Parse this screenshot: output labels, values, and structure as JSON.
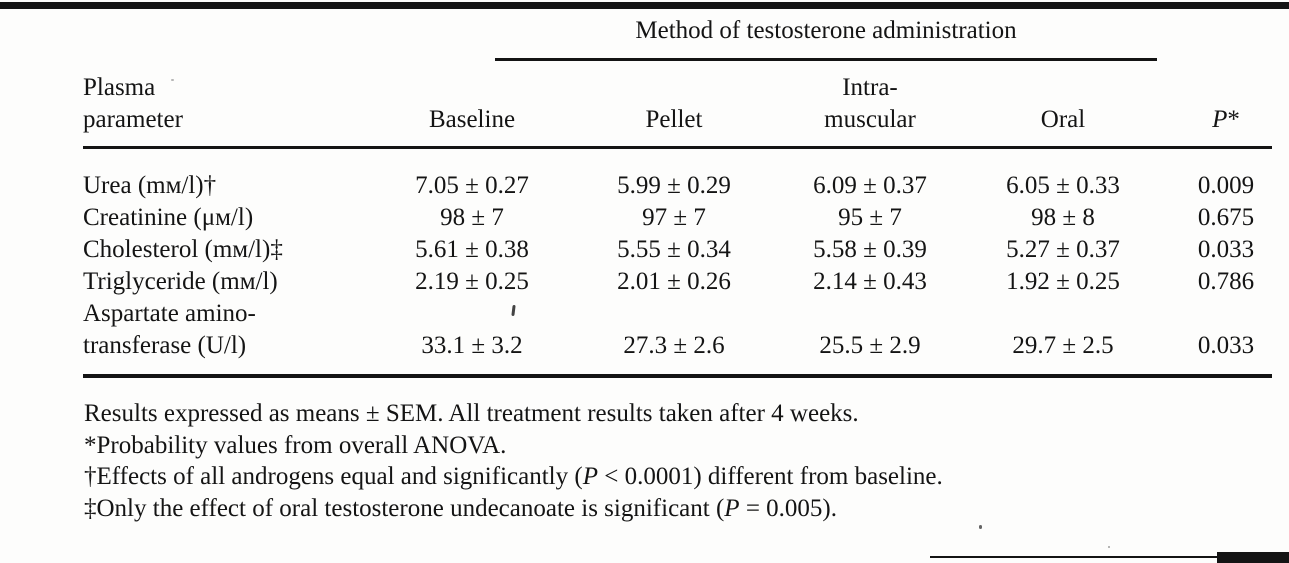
{
  "colors": {
    "ink": "#141414",
    "paper": "#fdfdfc"
  },
  "table": {
    "span_header": "Method of testosterone administration",
    "columns": {
      "param_line1": "Plasma",
      "param_line2": "parameter",
      "baseline": "Baseline",
      "pellet": "Pellet",
      "intramuscular_line1": "Intra-",
      "intramuscular_line2": "muscular",
      "oral": "Oral",
      "p_var": "P",
      "p_star": "*"
    },
    "rows": [
      {
        "param": "Urea (mᴍ/l)†",
        "baseline": "7.05 ± 0.27",
        "pellet": "5.99 ± 0.29",
        "intramuscular": "6.09 ± 0.37",
        "oral": "6.05 ± 0.33",
        "p": "0.009"
      },
      {
        "param": "Creatinine (μᴍ/l)",
        "baseline": "98 ± 7",
        "pellet": "97 ± 7",
        "intramuscular": "95 ± 7",
        "oral": "98 ± 8",
        "p": "0.675"
      },
      {
        "param": "Cholesterol (mᴍ/l)‡",
        "baseline": "5.61 ± 0.38",
        "pellet": "5.55 ± 0.34",
        "intramuscular": "5.58 ± 0.39",
        "oral": "5.27 ± 0.37",
        "p": "0.033"
      },
      {
        "param": "Triglyceride (mᴍ/l)",
        "baseline": "2.19 ± 0.25",
        "pellet": "2.01 ± 0.26",
        "intramuscular": "2.14 ± 0.43",
        "oral": "1.92 ± 0.25",
        "p": "0.786"
      },
      {
        "param_line1": "Aspartate amino-",
        "param_line2": "transferase (U/l)",
        "baseline": "33.1 ± 3.2",
        "pellet": "27.3 ± 2.6",
        "intramuscular": "25.5 ± 2.9",
        "oral": "29.7 ± 2.5",
        "p": "0.033"
      }
    ]
  },
  "footnotes": {
    "line1": "Results expressed as means ± SEM. All treatment results taken after 4 weeks.",
    "line2": "*Probability values from overall ANOVA.",
    "line3_pre": "†Effects of all androgens equal and significantly (",
    "line3_p": "P",
    "line3_post": " < 0.0001) different from baseline.",
    "line4_pre": "‡Only the effect of oral testosterone undecanoate is significant (",
    "line4_p": "P",
    "line4_post": " = 0.005)."
  }
}
